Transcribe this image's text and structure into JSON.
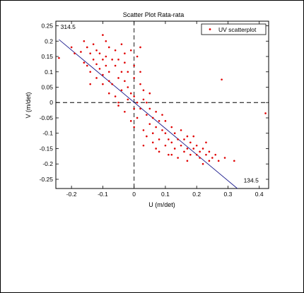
{
  "chart_data": {
    "type": "scatter",
    "title": "Scatter Plot Rata-rata",
    "xlabel": "U (m/det)",
    "ylabel": "V (m/det)",
    "xlim": [
      -0.25,
      0.43
    ],
    "ylim": [
      -0.28,
      0.265
    ],
    "xticks": [
      "-0.2",
      "-0.1",
      "0",
      "0.1",
      "0.2",
      "0.3",
      "0.4"
    ],
    "xtick_values": [
      -0.2,
      -0.1,
      0,
      0.1,
      0.2,
      0.3,
      0.4
    ],
    "yticks": [
      "0.25",
      "0.2",
      "0.15",
      "0.1",
      "0.05",
      "0",
      "-0.05",
      "-0.1",
      "-0.15",
      "-0.2",
      "-0.25"
    ],
    "ytick_values": [
      0.25,
      0.2,
      0.15,
      0.1,
      0.05,
      0,
      -0.05,
      -0.1,
      -0.15,
      -0.2,
      -0.25
    ],
    "grid": false,
    "legend": {
      "entries": [
        "UV scatterplot"
      ],
      "placement": "top-right"
    },
    "annotations": [
      {
        "text": "314.5",
        "x": -0.235,
        "y": 0.24
      },
      {
        "text": "134.5",
        "x": 0.35,
        "y": -0.26
      }
    ],
    "reference_lines": {
      "vertical_x": 0,
      "horizontal_y": 0,
      "style": "dashed"
    },
    "trend_line": {
      "x": [
        -0.24,
        0.33
      ],
      "y": [
        0.205,
        -0.28
      ]
    },
    "series": [
      {
        "name": "UV scatterplot",
        "marker_color": "#e00000",
        "marker": "dot",
        "points": [
          [
            -0.24,
            0.145
          ],
          [
            -0.2,
            0.18
          ],
          [
            -0.19,
            0.16
          ],
          [
            -0.17,
            0.165
          ],
          [
            -0.16,
            0.2
          ],
          [
            -0.16,
            0.13
          ],
          [
            -0.15,
            0.12
          ],
          [
            -0.15,
            0.18
          ],
          [
            -0.14,
            0.16
          ],
          [
            -0.14,
            0.1
          ],
          [
            -0.13,
            0.14
          ],
          [
            -0.13,
            0.19
          ],
          [
            -0.12,
            0.125
          ],
          [
            -0.12,
            0.08
          ],
          [
            -0.11,
            0.16
          ],
          [
            -0.11,
            0.11
          ],
          [
            -0.1,
            0.22
          ],
          [
            -0.1,
            0.14
          ],
          [
            -0.1,
            0.09
          ],
          [
            -0.1,
            0.06
          ],
          [
            -0.09,
            0.2
          ],
          [
            -0.09,
            0.15
          ],
          [
            -0.09,
            0.12
          ],
          [
            -0.08,
            0.18
          ],
          [
            -0.08,
            0.1
          ],
          [
            -0.08,
            0.03
          ],
          [
            -0.07,
            0.14
          ],
          [
            -0.07,
            0.06
          ],
          [
            -0.06,
            0.12
          ],
          [
            -0.06,
            0.17
          ],
          [
            -0.06,
            0.02
          ],
          [
            -0.05,
            0.08
          ],
          [
            -0.05,
            0.14
          ],
          [
            -0.05,
            -0.01
          ],
          [
            -0.04,
            0.1
          ],
          [
            -0.04,
            0.04
          ],
          [
            -0.04,
            0.19
          ],
          [
            -0.03,
            0.07
          ],
          [
            -0.03,
            0.13
          ],
          [
            -0.03,
            -0.03
          ],
          [
            -0.02,
            0.05
          ],
          [
            -0.02,
            0.1
          ],
          [
            -0.02,
            0.01
          ],
          [
            -0.01,
            0.17
          ],
          [
            -0.01,
            0.03
          ],
          [
            -0.01,
            -0.06
          ],
          [
            0.0,
            0.08
          ],
          [
            0.0,
            0.02
          ],
          [
            0.0,
            -0.02
          ],
          [
            0.0,
            0.12
          ],
          [
            0.01,
            0.15
          ],
          [
            0.01,
            0.0
          ],
          [
            0.01,
            -0.05
          ],
          [
            0.02,
            0.06
          ],
          [
            0.02,
            -0.02
          ],
          [
            0.02,
            0.18
          ],
          [
            0.03,
            -0.09
          ],
          [
            0.03,
            0.01
          ],
          [
            0.03,
            0.04
          ],
          [
            0.04,
            -0.04
          ],
          [
            0.04,
            0.0
          ],
          [
            0.04,
            -0.11
          ],
          [
            0.05,
            -0.02
          ],
          [
            0.05,
            -0.07
          ],
          [
            0.05,
            0.03
          ],
          [
            0.06,
            -0.05
          ],
          [
            0.06,
            -0.1
          ],
          [
            0.06,
            -0.13
          ],
          [
            0.07,
            -0.03
          ],
          [
            0.07,
            -0.08
          ],
          [
            0.08,
            -0.06
          ],
          [
            0.08,
            -0.12
          ],
          [
            0.08,
            -0.16
          ],
          [
            0.09,
            -0.09
          ],
          [
            0.09,
            -0.04
          ],
          [
            0.1,
            -0.1
          ],
          [
            0.1,
            -0.14
          ],
          [
            0.1,
            -0.06
          ],
          [
            0.11,
            -0.12
          ],
          [
            0.11,
            -0.17
          ],
          [
            0.12,
            -0.08
          ],
          [
            0.12,
            -0.13
          ],
          [
            0.13,
            -0.15
          ],
          [
            0.13,
            -0.1
          ],
          [
            0.14,
            -0.12
          ],
          [
            0.14,
            -0.18
          ],
          [
            0.15,
            -0.14
          ],
          [
            0.15,
            -0.09
          ],
          [
            0.16,
            -0.16
          ],
          [
            0.16,
            -0.12
          ],
          [
            0.17,
            -0.15
          ],
          [
            0.17,
            -0.19
          ],
          [
            0.18,
            -0.13
          ],
          [
            0.18,
            -0.17
          ],
          [
            0.19,
            -0.15
          ],
          [
            0.19,
            -0.11
          ],
          [
            0.2,
            -0.17
          ],
          [
            0.2,
            -0.14
          ],
          [
            0.21,
            -0.18
          ],
          [
            0.21,
            -0.16
          ],
          [
            0.22,
            -0.15
          ],
          [
            0.22,
            -0.2
          ],
          [
            0.23,
            -0.17
          ],
          [
            0.23,
            -0.13
          ],
          [
            0.24,
            -0.19
          ],
          [
            0.24,
            -0.16
          ],
          [
            0.25,
            -0.18
          ],
          [
            0.26,
            -0.17
          ],
          [
            0.27,
            -0.19
          ],
          [
            0.29,
            -0.18
          ],
          [
            0.32,
            -0.19
          ],
          [
            0.28,
            0.075
          ],
          [
            0.42,
            -0.035
          ],
          [
            -0.05,
            0.0
          ],
          [
            -0.08,
            0.07
          ],
          [
            -0.12,
            0.17
          ],
          [
            -0.14,
            0.06
          ],
          [
            0.0,
            -0.08
          ],
          [
            0.03,
            -0.14
          ],
          [
            0.07,
            -0.15
          ],
          [
            0.12,
            -0.17
          ],
          [
            0.17,
            -0.11
          ],
          [
            0.02,
            0.1
          ],
          [
            -0.03,
            0.16
          ]
        ]
      }
    ]
  }
}
